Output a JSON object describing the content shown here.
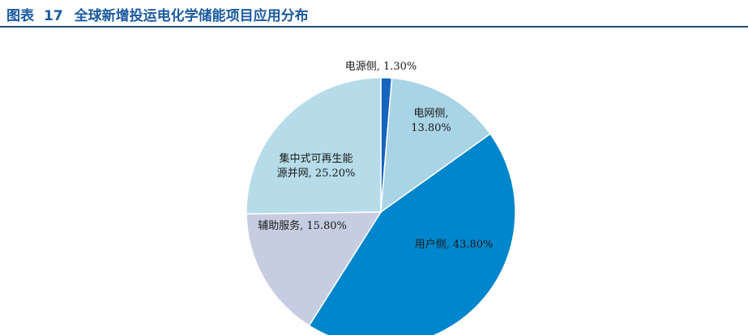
{
  "figure": {
    "label": "图表",
    "number": "17",
    "title": "全球新增投运电化学储能项目应用分布"
  },
  "colors": {
    "caption_text": "#1a5aa0",
    "caption_rule": "#1f4e79"
  },
  "chart_data": {
    "type": "pie",
    "start_angle_deg": 0,
    "direction": "clockwise",
    "slices": [
      {
        "label_lines": [
          "电源侧, 1.30%"
        ],
        "value": 1.3,
        "color": "#1565c0"
      },
      {
        "label_lines": [
          "电网侧,",
          "13.80%"
        ],
        "value": 13.8,
        "color": "#a9d4e6"
      },
      {
        "label_lines": [
          "用户侧, 43.80%"
        ],
        "value": 43.8,
        "color": "#0086cc"
      },
      {
        "label_lines": [
          "辅助服务, 15.80%"
        ],
        "value": 15.8,
        "color": "#c6cde1"
      },
      {
        "label_lines": [
          "集中式可再生能",
          "源并网, 25.20%"
        ],
        "value": 25.2,
        "color": "#b6dce9"
      }
    ]
  }
}
